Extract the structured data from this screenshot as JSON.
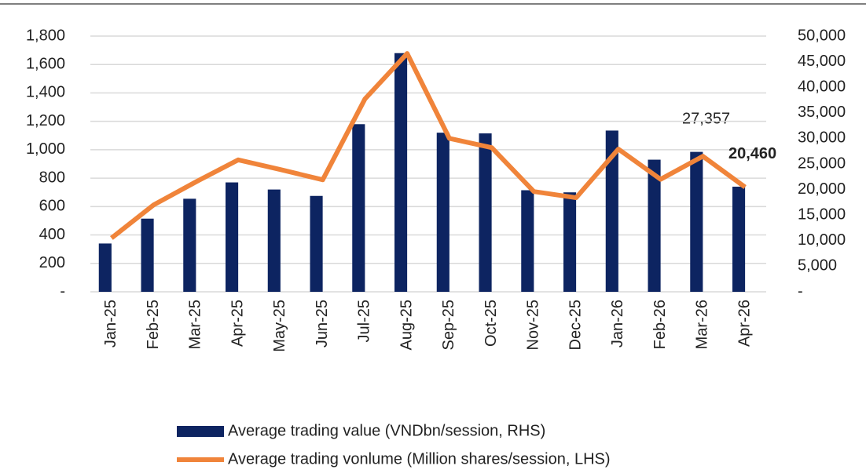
{
  "chart_data": {
    "type": "bar-line",
    "categories": [
      "Jan-25",
      "Feb-25",
      "Mar-25",
      "Apr-25",
      "May-25",
      "Jun-25",
      "Jul-25",
      "Aug-25",
      "Sep-25",
      "Oct-25",
      "Nov-25",
      "Dec-25",
      "Jan-26",
      "Feb-26",
      "Mar-26",
      "Apr-26"
    ],
    "series": [
      {
        "name": "Average trading value (VNDbn/session, RHS)",
        "color": "#0d2461",
        "type": "bar",
        "values": [
          340,
          515,
          655,
          770,
          720,
          675,
          1180,
          1680,
          1120,
          1115,
          715,
          700,
          1135,
          930,
          985,
          740
        ]
      },
      {
        "name": "Average trading vonlume  (Million shares/session, LHS)",
        "color": "#f0843a",
        "type": "line",
        "axis": "y2",
        "values": [
          10500,
          17000,
          21500,
          25800,
          23900,
          21900,
          37700,
          46600,
          30000,
          28200,
          19600,
          18400,
          27900,
          22000,
          26500,
          20460
        ],
        "value_labels": [
          null,
          null,
          null,
          null,
          null,
          null,
          null,
          null,
          null,
          null,
          null,
          null,
          null,
          null,
          null,
          "20,460"
        ]
      }
    ],
    "annotations": [
      "27,357"
    ],
    "ylim": [
      0,
      1800
    ],
    "yticks": [
      {
        "value": 0,
        "label": "-"
      },
      200,
      400,
      600,
      800,
      {
        "value": 1000,
        "label": "1,000"
      },
      {
        "value": 1200,
        "label": "1,200"
      },
      {
        "value": 1400,
        "label": "1,400"
      },
      {
        "value": 1600,
        "label": "1,600"
      },
      {
        "value": 1800,
        "label": "1,800"
      }
    ],
    "y2lim": [
      0,
      50000
    ],
    "y2ticks": [
      {
        "value": 0,
        "label": "-"
      },
      {
        "value": 5000,
        "label": "5,000"
      },
      {
        "value": 10000,
        "label": "10,000"
      },
      {
        "value": 15000,
        "label": "15,000"
      },
      {
        "value": 20000,
        "label": "20,000"
      },
      {
        "value": 25000,
        "label": "25,000"
      },
      {
        "value": 30000,
        "label": "30,000"
      },
      {
        "value": 35000,
        "label": "35,000"
      },
      {
        "value": 40000,
        "label": "40,000"
      },
      {
        "value": 45000,
        "label": "45,000"
      },
      {
        "value": 50000,
        "label": "50,000"
      }
    ],
    "grid": true
  }
}
